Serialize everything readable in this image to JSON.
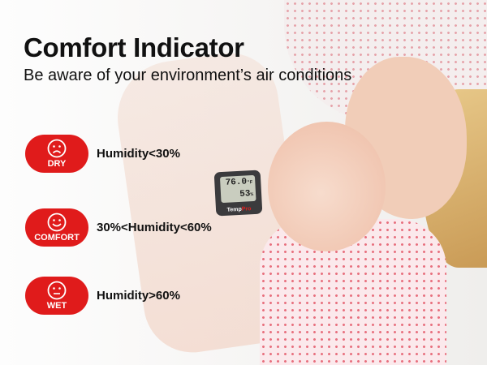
{
  "title": "Comfort Indicator",
  "subtitle": "Be aware of your environment’s air conditions",
  "indicators": [
    {
      "label": "DRY",
      "condition": "Humidity<30%",
      "icon": "sad-face-icon"
    },
    {
      "label": "COMFORT",
      "condition": "30%<Humidity<60%",
      "icon": "smile-face-icon"
    },
    {
      "label": "WET",
      "condition": "Humidity>60%",
      "icon": "neutral-face-icon"
    }
  ],
  "device": {
    "temperature": "76.0",
    "temp_unit": "°F",
    "humidity": "53",
    "humidity_unit": "%",
    "brand_part1": "Temp",
    "brand_part2": "Pro"
  },
  "colors": {
    "accent": "#e01b1b"
  }
}
